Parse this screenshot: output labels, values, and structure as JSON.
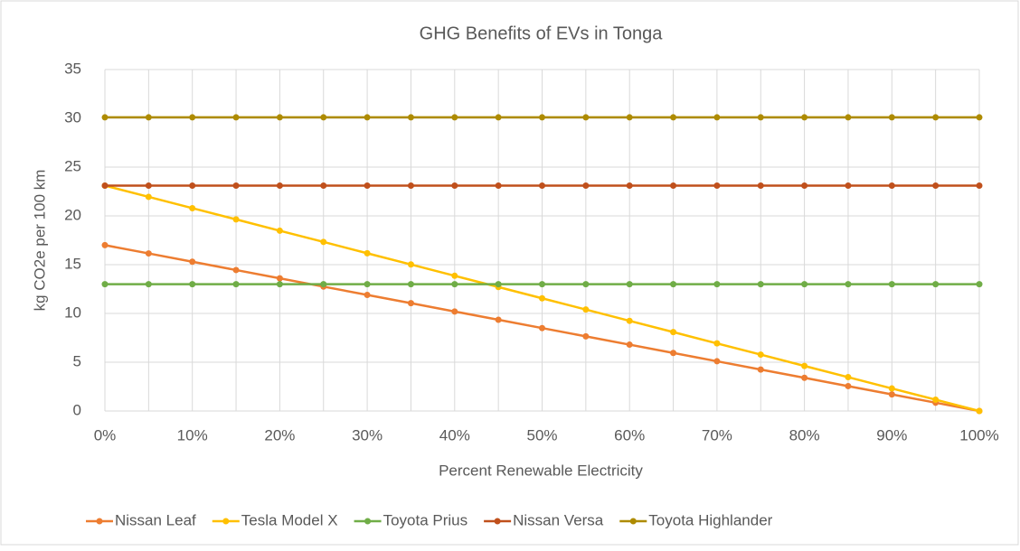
{
  "chart_data": {
    "type": "line",
    "title": "GHG Benefits of EVs in Tonga",
    "x_label": "Percent Renewable Electricity",
    "y_label": "kg CO2e per 100 km",
    "categories": [
      "0%",
      null,
      "10%",
      null,
      "20%",
      null,
      "30%",
      null,
      "40%",
      null,
      "50%",
      null,
      "60%",
      null,
      "70%",
      null,
      "80%",
      null,
      "90%",
      null,
      "100%"
    ],
    "series": [
      {
        "name": "Nissan Leaf",
        "color": "#ed7d31",
        "values": [
          17,
          16.15,
          15.3,
          14.45,
          13.6,
          12.75,
          11.9,
          11.05,
          10.2,
          9.35,
          8.5,
          7.65,
          6.8,
          5.95,
          5.1,
          4.25,
          3.4,
          2.55,
          1.7,
          0.85,
          0
        ]
      },
      {
        "name": "Tesla Model X",
        "color": "#ffc000",
        "values": [
          23.1,
          21.95,
          20.79,
          19.64,
          18.48,
          17.33,
          16.17,
          15.02,
          13.86,
          12.71,
          11.55,
          10.4,
          9.24,
          8.09,
          6.93,
          5.78,
          4.62,
          3.47,
          2.31,
          1.16,
          0
        ]
      },
      {
        "name": "Toyota Prius",
        "color": "#70ad47",
        "values": [
          13,
          13,
          13,
          13,
          13,
          13,
          13,
          13,
          13,
          13,
          13,
          13,
          13,
          13,
          13,
          13,
          13,
          13,
          13,
          13,
          13
        ]
      },
      {
        "name": "Nissan Versa",
        "color": "#c0501c",
        "values": [
          23.1,
          23.1,
          23.1,
          23.1,
          23.1,
          23.1,
          23.1,
          23.1,
          23.1,
          23.1,
          23.1,
          23.1,
          23.1,
          23.1,
          23.1,
          23.1,
          23.1,
          23.1,
          23.1,
          23.1,
          23.1
        ]
      },
      {
        "name": "Toyota Highlander",
        "color": "#ae8b00",
        "values": [
          30.1,
          30.1,
          30.1,
          30.1,
          30.1,
          30.1,
          30.1,
          30.1,
          30.1,
          30.1,
          30.1,
          30.1,
          30.1,
          30.1,
          30.1,
          30.1,
          30.1,
          30.1,
          30.1,
          30.1,
          30.1
        ]
      }
    ],
    "ylim": [
      0,
      35
    ],
    "yticks": [
      0,
      5,
      10,
      15,
      20,
      25,
      30,
      35
    ],
    "grid": true,
    "legend": "bottom"
  }
}
